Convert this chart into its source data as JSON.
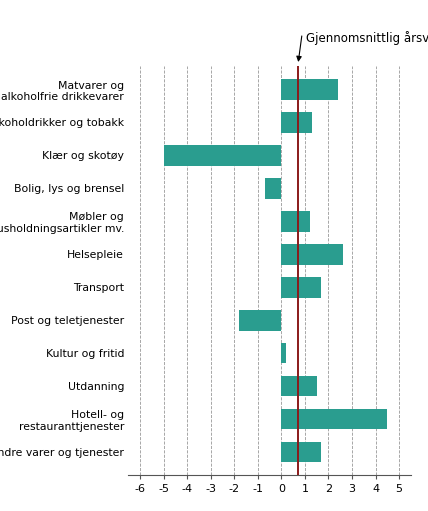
{
  "categories": [
    "Matvarer og\nalkoholfrie drikkevarer",
    "Alkoholdrikker og tobakk",
    "Klær og skotøy",
    "Bolig, lys og brensel",
    "Møbler og\nhusholdningsartikler mv.",
    "Helsepleie",
    "Transport",
    "Post og teletjenester",
    "Kultur og fritid",
    "Utdanning",
    "Hotell- og\nrestauranttjenester",
    "Andre varer og tjenester"
  ],
  "values": [
    2.4,
    1.3,
    -5.0,
    -0.7,
    1.2,
    2.6,
    1.7,
    -1.8,
    0.2,
    1.5,
    4.5,
    1.7
  ],
  "bar_color": "#2a9d8f",
  "avg_line_x": 0.7,
  "avg_line_color": "#8B1A1A",
  "annotation_text": "Gjennomsnittlig årsvekst",
  "xlim": [
    -6.5,
    5.5
  ],
  "xticks": [
    -6,
    -5,
    -4,
    -3,
    -2,
    -1,
    0,
    1,
    2,
    3,
    4,
    5
  ],
  "grid_color": "#999999",
  "background_color": "#ffffff",
  "bar_height": 0.62,
  "label_fontsize": 7.8,
  "tick_fontsize": 8.0
}
